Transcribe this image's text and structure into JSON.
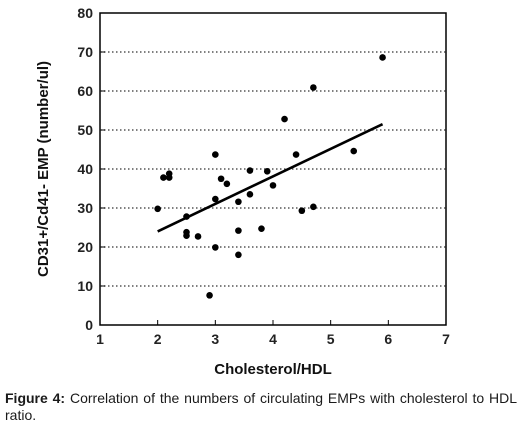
{
  "chart_data": {
    "type": "scatter",
    "title": "",
    "xlabel": "Cholesterol/HDL",
    "ylabel": "CD31+/Cd41- EMP (number/ul)",
    "xlim": [
      1,
      7
    ],
    "ylim": [
      0,
      80
    ],
    "x_ticks": [
      1,
      2,
      3,
      4,
      5,
      6,
      7
    ],
    "y_ticks": [
      0,
      10,
      20,
      30,
      40,
      50,
      60,
      70,
      80
    ],
    "grid": "dotted-horizontal",
    "legend": "none",
    "series": [
      {
        "points": [
          [
            2.0,
            29.8
          ],
          [
            2.1,
            37.8
          ],
          [
            2.2,
            38.8
          ],
          [
            2.2,
            37.8
          ],
          [
            2.5,
            27.8
          ],
          [
            2.5,
            23.8
          ],
          [
            2.5,
            22.9
          ],
          [
            2.7,
            22.7
          ],
          [
            2.9,
            7.6
          ],
          [
            3.0,
            43.7
          ],
          [
            3.0,
            32.3
          ],
          [
            3.0,
            19.9
          ],
          [
            3.1,
            37.5
          ],
          [
            3.2,
            36.2
          ],
          [
            3.4,
            31.6
          ],
          [
            3.4,
            24.2
          ],
          [
            3.4,
            18.0
          ],
          [
            3.6,
            39.6
          ],
          [
            3.6,
            33.5
          ],
          [
            3.8,
            24.7
          ],
          [
            3.9,
            39.4
          ],
          [
            4.0,
            35.8
          ],
          [
            4.2,
            52.8
          ],
          [
            4.4,
            43.7
          ],
          [
            4.5,
            29.3
          ],
          [
            4.7,
            60.9
          ],
          [
            4.7,
            30.3
          ],
          [
            5.4,
            44.6
          ],
          [
            5.9,
            68.6
          ]
        ]
      }
    ],
    "trendline": {
      "x": [
        2.0,
        5.9
      ],
      "y": [
        24.0,
        51.5
      ]
    }
  },
  "caption": {
    "label": "Figure 4:",
    "text": "Correlation of the numbers of circulating EMPs with cholesterol to HDL ratio."
  },
  "colors": {
    "points": "#000000",
    "trendline": "#000000",
    "grid": "#555555",
    "frame": "#000000"
  }
}
